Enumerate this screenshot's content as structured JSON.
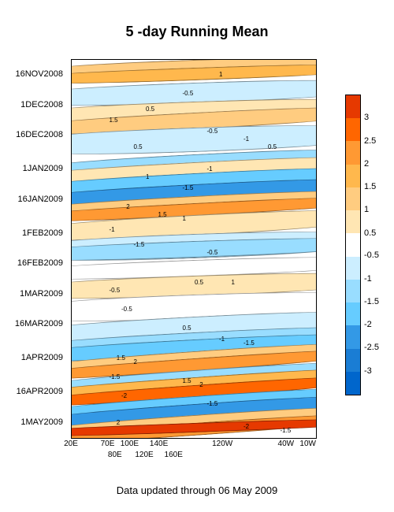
{
  "title": "5 -day Running Mean",
  "footer": "Data updated through 06 May 2009",
  "y_axis": {
    "labels": [
      {
        "text": "16NOV2008",
        "pos_pct": 4
      },
      {
        "text": "1DEC2008",
        "pos_pct": 12
      },
      {
        "text": "16DEC2008",
        "pos_pct": 20
      },
      {
        "text": "1JAN2009",
        "pos_pct": 29
      },
      {
        "text": "16JAN2009",
        "pos_pct": 37
      },
      {
        "text": "1FEB2009",
        "pos_pct": 46
      },
      {
        "text": "16FEB2009",
        "pos_pct": 54
      },
      {
        "text": "1MAR2009",
        "pos_pct": 62
      },
      {
        "text": "16MAR2009",
        "pos_pct": 70
      },
      {
        "text": "1APR2009",
        "pos_pct": 79
      },
      {
        "text": "16APR2009",
        "pos_pct": 88
      },
      {
        "text": "1MAY2009",
        "pos_pct": 96
      }
    ]
  },
  "x_axis": {
    "labels_row1": [
      {
        "text": "20E",
        "pos_pct": 0
      },
      {
        "text": "70E",
        "pos_pct": 15
      },
      {
        "text": "100E",
        "pos_pct": 24
      },
      {
        "text": "140E",
        "pos_pct": 36
      },
      {
        "text": "120W",
        "pos_pct": 62
      },
      {
        "text": "40W",
        "pos_pct": 88
      },
      {
        "text": "10W",
        "pos_pct": 97
      }
    ],
    "labels_row2": [
      {
        "text": "80E",
        "pos_pct": 18
      },
      {
        "text": "120E",
        "pos_pct": 30
      },
      {
        "text": "160E",
        "pos_pct": 42
      }
    ]
  },
  "colorbar": {
    "colors": [
      "#e63900",
      "#ff6600",
      "#ff9933",
      "#ffb84d",
      "#ffcc80",
      "#ffe6b3",
      "#ffffff",
      "#cceeff",
      "#99ddff",
      "#66ccff",
      "#3399e6",
      "#1a7dd4",
      "#0066cc"
    ],
    "labels": [
      {
        "text": "3",
        "pos_pct": 7.7
      },
      {
        "text": "2.5",
        "pos_pct": 15.4
      },
      {
        "text": "2",
        "pos_pct": 23.1
      },
      {
        "text": "1.5",
        "pos_pct": 30.8
      },
      {
        "text": "1",
        "pos_pct": 38.5
      },
      {
        "text": "0.5",
        "pos_pct": 46.2
      },
      {
        "text": "-0.5",
        "pos_pct": 53.8
      },
      {
        "text": "-1",
        "pos_pct": 61.5
      },
      {
        "text": "-1.5",
        "pos_pct": 69.2
      },
      {
        "text": "-2",
        "pos_pct": 76.9
      },
      {
        "text": "-2.5",
        "pos_pct": 84.6
      },
      {
        "text": "-3",
        "pos_pct": 92.3
      }
    ]
  },
  "bands": [
    {
      "top_pct": 0,
      "height_pct": 5,
      "color": "#ffcc80",
      "tilt": -2
    },
    {
      "top_pct": 2,
      "height_pct": 3,
      "color": "#ffb84d",
      "tilt": -2
    },
    {
      "top_pct": 6,
      "height_pct": 5,
      "color": "#cceeff",
      "tilt": -2
    },
    {
      "top_pct": 11,
      "height_pct": 5,
      "color": "#ffe6b3",
      "tilt": -2
    },
    {
      "top_pct": 14,
      "height_pct": 4,
      "color": "#ffcc80",
      "tilt": -3
    },
    {
      "top_pct": 18,
      "height_pct": 6,
      "color": "#cceeff",
      "tilt": -2
    },
    {
      "top_pct": 25,
      "height_pct": 5,
      "color": "#99ddff",
      "tilt": -3
    },
    {
      "top_pct": 27,
      "height_pct": 4,
      "color": "#ffe6b3",
      "tilt": -3
    },
    {
      "top_pct": 30,
      "height_pct": 4,
      "color": "#66ccff",
      "tilt": -3
    },
    {
      "top_pct": 33,
      "height_pct": 4,
      "color": "#3399e6",
      "tilt": -3
    },
    {
      "top_pct": 36,
      "height_pct": 4,
      "color": "#ffcc80",
      "tilt": -3
    },
    {
      "top_pct": 38,
      "height_pct": 3,
      "color": "#ff9933",
      "tilt": -3
    },
    {
      "top_pct": 41,
      "height_pct": 5,
      "color": "#ffe6b3",
      "tilt": -3
    },
    {
      "top_pct": 46,
      "height_pct": 6,
      "color": "#cceeff",
      "tilt": -2
    },
    {
      "top_pct": 48,
      "height_pct": 4,
      "color": "#99ddff",
      "tilt": -2
    },
    {
      "top_pct": 53,
      "height_pct": 4,
      "color": "#ffffff",
      "tilt": -2
    },
    {
      "top_pct": 57,
      "height_pct": 5,
      "color": "#ffe6b3",
      "tilt": -2
    },
    {
      "top_pct": 62,
      "height_pct": 6,
      "color": "#ffffff",
      "tilt": -2
    },
    {
      "top_pct": 68,
      "height_pct": 5,
      "color": "#cceeff",
      "tilt": -3
    },
    {
      "top_pct": 72,
      "height_pct": 4,
      "color": "#99ddff",
      "tilt": -3
    },
    {
      "top_pct": 74,
      "height_pct": 4,
      "color": "#66ccff",
      "tilt": -3
    },
    {
      "top_pct": 77,
      "height_pct": 4,
      "color": "#ffcc80",
      "tilt": -4
    },
    {
      "top_pct": 79,
      "height_pct": 3,
      "color": "#ff9933",
      "tilt": -4
    },
    {
      "top_pct": 82,
      "height_pct": 4,
      "color": "#99ddff",
      "tilt": -4
    },
    {
      "top_pct": 84,
      "height_pct": 3,
      "color": "#ffb84d",
      "tilt": -4
    },
    {
      "top_pct": 86,
      "height_pct": 3,
      "color": "#ff6600",
      "tilt": -4
    },
    {
      "top_pct": 89,
      "height_pct": 4,
      "color": "#66ccff",
      "tilt": -4
    },
    {
      "top_pct": 91,
      "height_pct": 4,
      "color": "#3399e6",
      "tilt": -4
    },
    {
      "top_pct": 94,
      "height_pct": 4,
      "color": "#ffcc80",
      "tilt": -4
    },
    {
      "top_pct": 96,
      "height_pct": 3,
      "color": "#ff9933",
      "tilt": -4
    },
    {
      "top_pct": 96,
      "height_pct": 2,
      "color": "#e63900",
      "tilt": -2
    }
  ],
  "contour_labels": [
    {
      "text": "1",
      "left_pct": 60,
      "top_pct": 3
    },
    {
      "text": "-0.5",
      "left_pct": 45,
      "top_pct": 8
    },
    {
      "text": "0.5",
      "left_pct": 30,
      "top_pct": 12
    },
    {
      "text": "1.5",
      "left_pct": 15,
      "top_pct": 15
    },
    {
      "text": "-0.5",
      "left_pct": 55,
      "top_pct": 18
    },
    {
      "text": "-1",
      "left_pct": 70,
      "top_pct": 20
    },
    {
      "text": "0.5",
      "left_pct": 25,
      "top_pct": 22
    },
    {
      "text": "0.5",
      "left_pct": 80,
      "top_pct": 22
    },
    {
      "text": "-1",
      "left_pct": 55,
      "top_pct": 28
    },
    {
      "text": "1",
      "left_pct": 30,
      "top_pct": 30
    },
    {
      "text": "-1.5",
      "left_pct": 45,
      "top_pct": 33
    },
    {
      "text": "2",
      "left_pct": 22,
      "top_pct": 38
    },
    {
      "text": "1.5",
      "left_pct": 35,
      "top_pct": 40
    },
    {
      "text": "1",
      "left_pct": 45,
      "top_pct": 41
    },
    {
      "text": "-1",
      "left_pct": 15,
      "top_pct": 44
    },
    {
      "text": "-1.5",
      "left_pct": 25,
      "top_pct": 48
    },
    {
      "text": "-0.5",
      "left_pct": 55,
      "top_pct": 50
    },
    {
      "text": "0.5",
      "left_pct": 50,
      "top_pct": 58
    },
    {
      "text": "1",
      "left_pct": 65,
      "top_pct": 58
    },
    {
      "text": "-0.5",
      "left_pct": 15,
      "top_pct": 60
    },
    {
      "text": "-0.5",
      "left_pct": 20,
      "top_pct": 65
    },
    {
      "text": "0.5",
      "left_pct": 45,
      "top_pct": 70
    },
    {
      "text": "-1",
      "left_pct": 60,
      "top_pct": 73
    },
    {
      "text": "-1.5",
      "left_pct": 70,
      "top_pct": 74
    },
    {
      "text": "1.5",
      "left_pct": 18,
      "top_pct": 78
    },
    {
      "text": "2",
      "left_pct": 25,
      "top_pct": 79
    },
    {
      "text": "-1.5",
      "left_pct": 15,
      "top_pct": 83
    },
    {
      "text": "1.5",
      "left_pct": 45,
      "top_pct": 84
    },
    {
      "text": "2",
      "left_pct": 52,
      "top_pct": 85
    },
    {
      "text": "-2",
      "left_pct": 20,
      "top_pct": 88
    },
    {
      "text": "-1.5",
      "left_pct": 55,
      "top_pct": 90
    },
    {
      "text": "2",
      "left_pct": 18,
      "top_pct": 95
    },
    {
      "text": "-2",
      "left_pct": 70,
      "top_pct": 96
    },
    {
      "text": "-1.5",
      "left_pct": 85,
      "top_pct": 97
    }
  ]
}
